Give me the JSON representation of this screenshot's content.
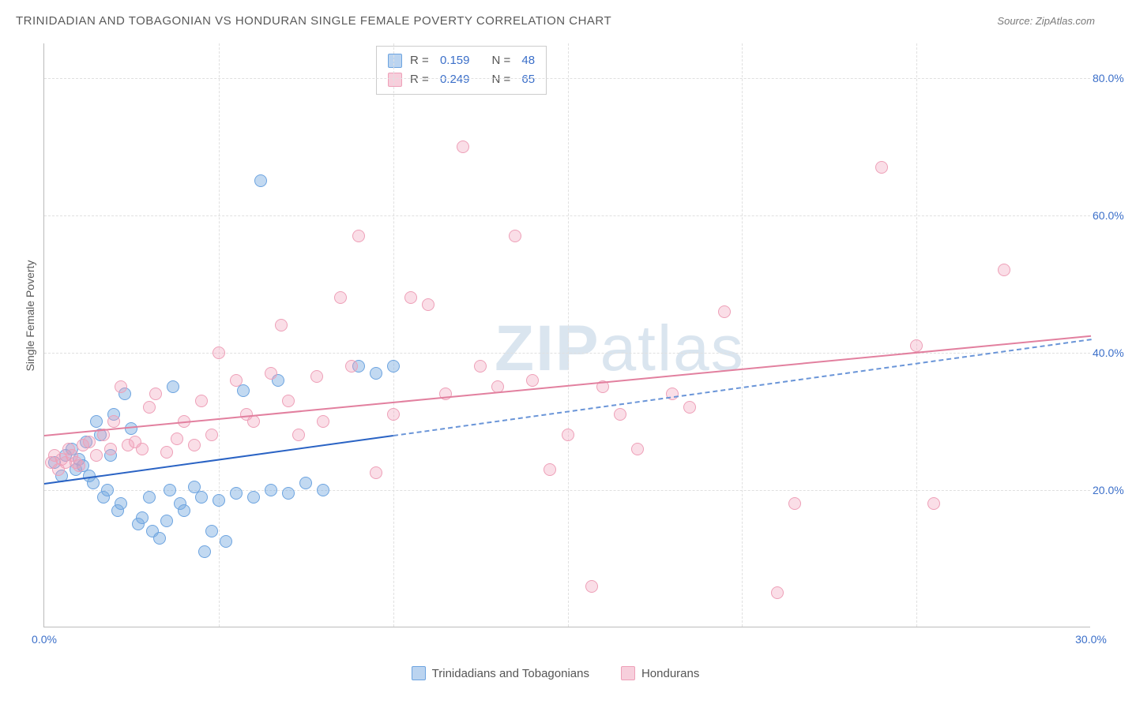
{
  "header": {
    "title": "TRINIDADIAN AND TOBAGONIAN VS HONDURAN SINGLE FEMALE POVERTY CORRELATION CHART",
    "source_label": "Source:",
    "source_value": "ZipAtlas.com"
  },
  "chart": {
    "type": "scatter",
    "ylabel": "Single Female Poverty",
    "xlim": [
      0,
      30
    ],
    "ylim": [
      0,
      85
    ],
    "xticks": [
      {
        "v": 0,
        "label": "0.0%"
      },
      {
        "v": 30,
        "label": "30.0%"
      }
    ],
    "yticks": [
      {
        "v": 20,
        "label": "20.0%"
      },
      {
        "v": 40,
        "label": "40.0%"
      },
      {
        "v": 60,
        "label": "60.0%"
      },
      {
        "v": 80,
        "label": "80.0%"
      }
    ],
    "x_gridlines": [
      5,
      10,
      15,
      20,
      25
    ],
    "background_color": "#ffffff",
    "grid_color": "#e0e0e0",
    "axis_color": "#bbbbbb",
    "tick_label_color": "#3b6fc9",
    "point_radius": 8,
    "series": [
      {
        "name": "Trinidadians and Tobagonians",
        "short": "blue",
        "fill": "rgba(120,170,225,0.45)",
        "stroke": "#6da4e0",
        "R": "0.159",
        "N": "48",
        "trend": {
          "solid_x_range": [
            0,
            10
          ],
          "dash_x_range": [
            10,
            30
          ],
          "y_at_x0": 21,
          "y_at_x30": 42,
          "color": "#2a63c4"
        },
        "points": [
          [
            0.3,
            24
          ],
          [
            0.5,
            22
          ],
          [
            0.6,
            25
          ],
          [
            0.8,
            26
          ],
          [
            0.9,
            23
          ],
          [
            1.0,
            24.5
          ],
          [
            1.1,
            23.5
          ],
          [
            1.2,
            27
          ],
          [
            1.3,
            22
          ],
          [
            1.4,
            21
          ],
          [
            1.5,
            30
          ],
          [
            1.6,
            28
          ],
          [
            1.7,
            19
          ],
          [
            1.8,
            20
          ],
          [
            1.9,
            25
          ],
          [
            2.0,
            31
          ],
          [
            2.1,
            17
          ],
          [
            2.2,
            18
          ],
          [
            2.3,
            34
          ],
          [
            2.5,
            29
          ],
          [
            2.7,
            15
          ],
          [
            2.8,
            16
          ],
          [
            3.0,
            19
          ],
          [
            3.1,
            14
          ],
          [
            3.3,
            13
          ],
          [
            3.5,
            15.5
          ],
          [
            3.6,
            20
          ],
          [
            3.7,
            35
          ],
          [
            3.9,
            18
          ],
          [
            4.0,
            17
          ],
          [
            4.3,
            20.5
          ],
          [
            4.5,
            19
          ],
          [
            4.6,
            11
          ],
          [
            4.8,
            14
          ],
          [
            5.0,
            18.5
          ],
          [
            5.2,
            12.5
          ],
          [
            5.5,
            19.5
          ],
          [
            5.7,
            34.5
          ],
          [
            6.0,
            19
          ],
          [
            6.2,
            65
          ],
          [
            6.5,
            20
          ],
          [
            6.7,
            36
          ],
          [
            7.0,
            19.5
          ],
          [
            7.5,
            21
          ],
          [
            8.0,
            20
          ],
          [
            9.0,
            38
          ],
          [
            9.5,
            37
          ],
          [
            10.0,
            38
          ]
        ]
      },
      {
        "name": "Hondurans",
        "short": "pink",
        "fill": "rgba(240,160,185,0.35)",
        "stroke": "#eea0b8",
        "R": "0.249",
        "N": "65",
        "trend": {
          "solid_x_range": [
            0,
            30
          ],
          "y_at_x0": 28,
          "y_at_x30": 42.5,
          "color": "#e2809f"
        },
        "points": [
          [
            0.2,
            24
          ],
          [
            0.3,
            25
          ],
          [
            0.4,
            23
          ],
          [
            0.5,
            24.5
          ],
          [
            0.6,
            24
          ],
          [
            0.7,
            26
          ],
          [
            0.8,
            25
          ],
          [
            0.9,
            24
          ],
          [
            1.0,
            23.5
          ],
          [
            1.1,
            26.5
          ],
          [
            1.3,
            27
          ],
          [
            1.5,
            25
          ],
          [
            1.7,
            28
          ],
          [
            1.9,
            26
          ],
          [
            2.0,
            30
          ],
          [
            2.2,
            35
          ],
          [
            2.4,
            26.5
          ],
          [
            2.6,
            27
          ],
          [
            2.8,
            26
          ],
          [
            3.0,
            32
          ],
          [
            3.2,
            34
          ],
          [
            3.5,
            25.5
          ],
          [
            3.8,
            27.5
          ],
          [
            4.0,
            30
          ],
          [
            4.3,
            26.5
          ],
          [
            4.5,
            33
          ],
          [
            4.8,
            28
          ],
          [
            5.0,
            40
          ],
          [
            5.5,
            36
          ],
          [
            5.8,
            31
          ],
          [
            6.0,
            30
          ],
          [
            6.5,
            37
          ],
          [
            6.8,
            44
          ],
          [
            7.0,
            33
          ],
          [
            7.3,
            28
          ],
          [
            7.8,
            36.5
          ],
          [
            8.0,
            30
          ],
          [
            8.5,
            48
          ],
          [
            8.8,
            38
          ],
          [
            9.0,
            57
          ],
          [
            9.5,
            22.5
          ],
          [
            10.0,
            31
          ],
          [
            10.5,
            48
          ],
          [
            11.0,
            47
          ],
          [
            11.5,
            34
          ],
          [
            12.0,
            70
          ],
          [
            12.5,
            38
          ],
          [
            13.0,
            35
          ],
          [
            13.5,
            57
          ],
          [
            14.0,
            36
          ],
          [
            14.5,
            23
          ],
          [
            15.0,
            28
          ],
          [
            15.7,
            6
          ],
          [
            16.0,
            35
          ],
          [
            16.5,
            31
          ],
          [
            17.0,
            26
          ],
          [
            18.0,
            34
          ],
          [
            18.5,
            32
          ],
          [
            19.5,
            46
          ],
          [
            21.0,
            5
          ],
          [
            21.5,
            18
          ],
          [
            24.0,
            67
          ],
          [
            25.0,
            41
          ],
          [
            25.5,
            18
          ],
          [
            27.5,
            52
          ]
        ]
      }
    ],
    "watermark": {
      "text_a": "ZIP",
      "text_b": "atlas",
      "color": "rgba(150,180,210,0.35)",
      "fontsize": 82
    },
    "stats_box": {
      "pos": "top-center"
    }
  },
  "legend": {
    "series1_label": "Trinidadians and Tobagonians",
    "series2_label": "Hondurans"
  }
}
